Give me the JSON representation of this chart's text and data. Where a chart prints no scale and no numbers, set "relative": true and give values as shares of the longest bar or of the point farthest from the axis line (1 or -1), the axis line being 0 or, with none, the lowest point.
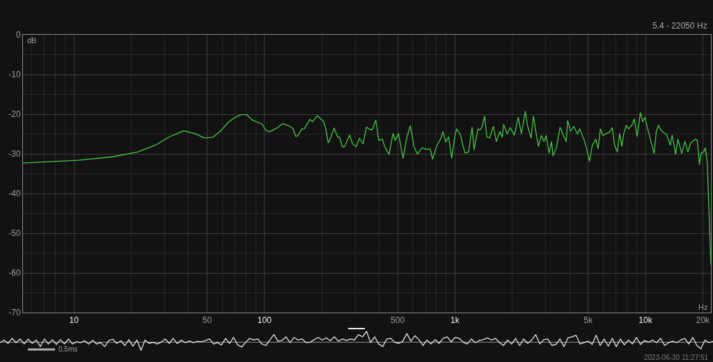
{
  "chart_data": [
    {
      "type": "line",
      "xlabel": "Hz",
      "ylabel": "dB",
      "annotations": [
        "5.4 - 22050 Hz"
      ],
      "log": "x",
      "grid": true,
      "xlim": [
        5.4,
        22050
      ],
      "xticks": [
        10,
        50,
        100,
        500,
        {
          "value": 1000,
          "label": "1k"
        },
        {
          "value": 5000,
          "label": "5k"
        },
        {
          "value": 10000,
          "label": "10k"
        },
        {
          "value": 20000,
          "label": "20k"
        }
      ],
      "ylim": [
        -70,
        0
      ],
      "yticks": [
        -70,
        -60,
        -50,
        -40,
        -30,
        -20,
        -10,
        0
      ],
      "x": [
        5.4,
        10.6,
        16.2,
        21.4,
        26.8,
        31.7,
        37.7,
        43.2,
        48.3,
        53.7,
        58.7,
        64.8,
        69.5,
        75.6,
        80.4,
        86.5,
        97.2,
        102,
        107,
        117,
        124,
        134,
        141,
        146,
        150,
        157,
        162,
        173,
        179,
        189,
        204,
        210,
        216,
        220,
        232,
        242,
        248,
        256,
        263,
        280,
        290,
        303,
        315,
        329,
        343,
        358,
        368,
        384,
        398,
        415,
        430,
        451,
        473,
        486,
        505,
        534,
        560,
        583,
        609,
        635,
        672,
        710,
        741,
        762,
        806,
        841,
        865,
        894,
        926,
        961,
        995,
        1020,
        1070,
        1100,
        1130,
        1180,
        1230,
        1260,
        1320,
        1350,
        1390,
        1430,
        1470,
        1520,
        1590,
        1650,
        1720,
        1770,
        1800,
        1880,
        1950,
        2050,
        2150,
        2230,
        2290,
        2340,
        2400,
        2510,
        2580,
        2650,
        2740,
        2840,
        2930,
        3010,
        3120,
        3210,
        3270,
        3410,
        3560,
        3710,
        3840,
        3900,
        4040,
        4210,
        4390,
        4510,
        4750,
        4910,
        5080,
        5260,
        5490,
        5640,
        5800,
        5970,
        6240,
        6500,
        6690,
        6880,
        7110,
        7320,
        7520,
        7690,
        7910,
        8170,
        8480,
        8720,
        9040,
        9400,
        9660,
        9930,
        10200,
        10600,
        11100,
        11400,
        11700,
        12000,
        12400,
        12900,
        13500,
        13800,
        14400,
        14800,
        15500,
        16100,
        16700,
        17300,
        18300,
        18700,
        19200,
        19600,
        20200,
        20600,
        21100,
        22050
      ],
      "series": [
        {
          "color": "#45c842",
          "values": [
            -32.3,
            -31.6,
            -30.7,
            -29.6,
            -27.8,
            -25.7,
            -24.2,
            -24.9,
            -26.0,
            -25.8,
            -24.3,
            -22.0,
            -20.9,
            -20.1,
            -20.1,
            -21.5,
            -22.5,
            -24.1,
            -24.4,
            -23.4,
            -22.4,
            -22.9,
            -23.6,
            -25.6,
            -25.4,
            -23.7,
            -23.7,
            -21.3,
            -21.9,
            -20.4,
            -21.8,
            -23.7,
            -27.2,
            -26.6,
            -23.5,
            -25.7,
            -25.8,
            -28.2,
            -28.2,
            -25.3,
            -27.5,
            -28.2,
            -26.1,
            -27.5,
            -23.3,
            -23.9,
            -23.9,
            -21.5,
            -26.6,
            -26.3,
            -28.4,
            -30.1,
            -24.9,
            -26.6,
            -24.9,
            -31.1,
            -25.7,
            -22.9,
            -28.1,
            -30.1,
            -28.5,
            -28.9,
            -28.7,
            -31.3,
            -27.8,
            -26.2,
            -24.4,
            -27.0,
            -25.7,
            -31.1,
            -26.0,
            -23.7,
            -25.3,
            -27.9,
            -29.8,
            -29.5,
            -23.3,
            -28.9,
            -23.7,
            -24.0,
            -23.1,
            -20.5,
            -25.7,
            -26.0,
            -23.1,
            -26.9,
            -24.4,
            -25.8,
            -22.6,
            -25.0,
            -23.4,
            -25.3,
            -20.8,
            -24.9,
            -21.9,
            -19.3,
            -22.8,
            -26.0,
            -20.5,
            -24.0,
            -28.1,
            -25.4,
            -26.9,
            -25.4,
            -29.8,
            -26.9,
            -30.5,
            -28.4,
            -23.3,
            -25.4,
            -26.9,
            -21.6,
            -24.3,
            -23.1,
            -25.0,
            -23.7,
            -26.3,
            -28.7,
            -31.9,
            -27.8,
            -26.3,
            -28.7,
            -23.7,
            -25.4,
            -24.9,
            -24.4,
            -23.4,
            -27.8,
            -29.5,
            -24.9,
            -28.1,
            -24.9,
            -22.9,
            -23.7,
            -22.8,
            -21.2,
            -25.6,
            -19.6,
            -21.9,
            -20.8,
            -23.1,
            -26.3,
            -29.9,
            -24.3,
            -22.8,
            -23.9,
            -24.6,
            -25.1,
            -27.8,
            -25.3,
            -30.1,
            -26.3,
            -29.9,
            -26.9,
            -29.5,
            -27.2,
            -26.3,
            -26.6,
            -32.7,
            -29.8,
            -29.5,
            -28.5,
            -32.2,
            -58.0
          ]
        }
      ]
    },
    {
      "type": "line",
      "relative": true,
      "annotations": [
        "0.5ms",
        "2023-06-30 11:27:51"
      ],
      "categories": [
        null,
        null,
        null,
        null,
        null,
        null,
        null,
        null,
        null,
        null,
        null,
        null,
        null,
        null,
        null,
        null,
        null,
        null,
        null,
        null,
        null,
        null,
        null,
        null,
        null,
        null,
        null,
        null,
        null,
        null,
        null,
        null,
        null,
        null,
        null,
        null,
        null,
        null,
        null,
        null,
        null,
        null,
        null,
        null,
        null,
        null,
        null,
        null,
        null,
        null,
        null,
        null,
        null,
        null,
        null,
        null,
        null,
        null,
        null,
        null,
        null,
        null,
        null,
        null,
        null,
        null,
        null,
        null,
        null,
        null,
        null,
        null,
        null,
        null,
        null,
        null,
        null,
        null,
        null,
        null,
        null,
        null,
        null,
        null,
        null,
        null,
        null,
        null,
        null,
        null,
        null,
        null,
        null,
        null,
        null,
        null,
        null,
        null,
        null,
        null,
        null,
        null,
        null,
        null,
        null,
        null,
        null,
        null,
        null,
        null,
        null,
        null,
        null,
        null,
        null,
        null,
        null,
        null,
        null,
        null,
        null,
        null,
        null,
        null,
        null,
        null,
        null,
        null,
        null,
        null,
        null,
        null,
        null,
        null,
        null,
        null,
        null,
        null,
        null,
        null,
        null,
        null,
        null,
        null,
        null,
        null,
        null,
        null,
        null,
        null,
        null,
        null,
        null,
        null,
        null,
        null,
        null,
        null,
        null,
        null,
        null,
        null,
        null,
        null,
        null,
        null,
        null,
        null,
        null,
        null,
        null,
        null,
        null,
        null,
        null,
        null,
        null,
        null
      ],
      "series": [
        {
          "color": "#e6e6e6",
          "values": [
            -0.08,
            0.17,
            -0.15,
            0.33,
            -0.08,
            0.27,
            -0.21,
            0.25,
            -0.15,
            0.17,
            -0.46,
            0.27,
            -0.21,
            0.21,
            -0.25,
            0.21,
            -0.21,
            0.27,
            -0.21,
            0,
            -0.08,
            0.1,
            -0.21,
            0.13,
            -0.21,
            -0.08,
            -0.46,
            0.13,
            0.25,
            -0.15,
            0.1,
            -0.35,
            0.21,
            -0.42,
            0.17,
            -0.81,
            0.17,
            -0.15,
            -0.04,
            -0.21,
            -0.04,
            0.27,
            -0.15,
            0.33,
            -0.17,
            0.17,
            -0.08,
            0.08,
            -0.08,
            0.04,
            0,
            0.13,
            0.27,
            -0.21,
            -0.08,
            -0.29,
            0.33,
            -0.15,
            0.42,
            -0.29,
            -0.5,
            -0.04,
            0.33,
            0.17,
            0.27,
            -0.21,
            -0.35,
            0.17,
            0.69,
            0.06,
            0.13,
            0.48,
            -0.08,
            0.42,
            0.17,
            0.27,
            -0.08,
            -0.04,
            0.21,
            0.42,
            0.17,
            0.38,
            0.1,
            0.48,
            0.06,
            0.27,
            0.13,
            0.27,
            0.17,
            0.69,
            0.48,
            1.0,
            -0.08,
            0.48,
            -0.21,
            -0.46,
            0.27,
            0.33,
            -0.04,
            -0.15,
            0.06,
            0.79,
            0.06,
            0.58,
            0.21,
            -0.35,
            0.17,
            -0.21,
            0.21,
            -0.15,
            0.33,
            0.48,
            0,
            0.42,
            0.33,
            -0.04,
            -0.21,
            0.27,
            -0.08,
            0.13,
            0.21,
            0.38,
            0.17,
            0.33,
            -0.08,
            -0.35,
            0.17,
            -0.21,
            0.33,
            -0.35,
            0.27,
            -0.15,
            0.17,
            0.69,
            -0.21,
            0.21,
            0.27,
            -0.35,
            -0.25,
            0.27,
            -0.46,
            0.38,
            0.48,
            0.63,
            -0.21,
            -0.08,
            0.06,
            -0.25,
            0.63,
            -0.35,
            0.27,
            -0.42,
            0.33,
            -0.46,
            0.27,
            -0.29,
            0.17,
            -0.21,
            0.42,
            -0.25,
            0.13,
            -0.04,
            0.17,
            -0.08,
            0.33,
            -0.35,
            -0.08,
            0.06,
            -0.08,
            0.17,
            0.33,
            -0.21,
            0.42,
            -0.35,
            -0.67,
            0.17,
            -0.08,
            0.04
          ]
        }
      ]
    }
  ]
}
